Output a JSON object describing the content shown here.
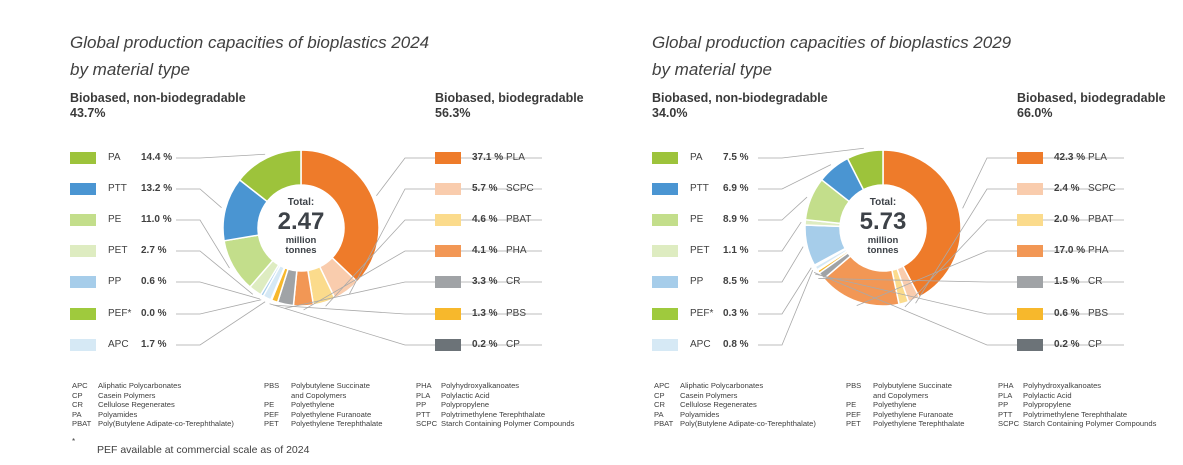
{
  "colors": {
    "PA": "#9dc33b",
    "PTT": "#4a95d2",
    "PE": "#c3de8b",
    "PET": "#deecc1",
    "PP": "#a6cdea",
    "PEF": "#9fca3d",
    "APC": "#d6e9f5",
    "PLA": "#ee7b2a",
    "SCPC": "#f9ccad",
    "PBAT": "#fbdb8c",
    "PHA": "#f29755",
    "CR": "#a0a3a6",
    "PBS": "#f7b82c",
    "CP": "#6c7378",
    "line": "#a9a9a9"
  },
  "charts": [
    {
      "title_line1": "Global production capacities of bioplastics 2024",
      "title_line2": "by material type",
      "left_group": {
        "name": "Biobased, non-biodegradable",
        "pct": "43.7%"
      },
      "right_group": {
        "name": "Biobased, biodegradable",
        "pct": "56.3%"
      },
      "total": {
        "label": "Total:",
        "value": "2.47",
        "unit1": "million",
        "unit2": "tonnes"
      }
    },
    {
      "title_line1": "Global production capacities of bioplastics 2029",
      "title_line2": "by material type",
      "left_group": {
        "name": "Biobased, non-biodegradable",
        "pct": "34.0%"
      },
      "right_group": {
        "name": "Biobased, biodegradable",
        "pct": "66.0%"
      },
      "total": {
        "label": "Total:",
        "value": "5.73",
        "unit1": "million",
        "unit2": "tonnes"
      }
    }
  ],
  "chart_data": [
    {
      "type": "pie",
      "title": "Global production capacities of bioplastics 2024 by material type",
      "unit": "%",
      "left_series": [
        {
          "name": "PA",
          "value": 14.4,
          "label": "14.4 %"
        },
        {
          "name": "PTT",
          "value": 13.2,
          "label": "13.2 %"
        },
        {
          "name": "PE",
          "value": 11.0,
          "label": "11.0 %"
        },
        {
          "name": "PET",
          "value": 2.7,
          "label": "2.7 %"
        },
        {
          "name": "PP",
          "value": 0.6,
          "label": "0.6 %"
        },
        {
          "name": "PEF*",
          "value": 0.0,
          "label": "0.0 %"
        },
        {
          "name": "APC",
          "value": 1.7,
          "label": "1.7 %"
        }
      ],
      "right_series": [
        {
          "name": "PLA",
          "value": 37.1,
          "label": "37.1 %"
        },
        {
          "name": "SCPC",
          "value": 5.7,
          "label": "5.7 %"
        },
        {
          "name": "PBAT",
          "value": 4.6,
          "label": "4.6 %"
        },
        {
          "name": "PHA",
          "value": 4.1,
          "label": "4.1 %"
        },
        {
          "name": "CR",
          "value": 3.3,
          "label": "3.3 %"
        },
        {
          "name": "PBS",
          "value": 1.3,
          "label": "1.3 %"
        },
        {
          "name": "CP",
          "value": 0.2,
          "label": "0.2 %"
        }
      ]
    },
    {
      "type": "pie",
      "title": "Global production capacities of bioplastics 2029 by material type",
      "unit": "%",
      "left_series": [
        {
          "name": "PA",
          "value": 7.5,
          "label": "7.5 %"
        },
        {
          "name": "PTT",
          "value": 6.9,
          "label": "6.9 %"
        },
        {
          "name": "PE",
          "value": 8.9,
          "label": "8.9 %"
        },
        {
          "name": "PET",
          "value": 1.1,
          "label": "1.1 %"
        },
        {
          "name": "PP",
          "value": 8.5,
          "label": "8.5 %"
        },
        {
          "name": "PEF*",
          "value": 0.3,
          "label": "0.3 %"
        },
        {
          "name": "APC",
          "value": 0.8,
          "label": "0.8 %"
        }
      ],
      "right_series": [
        {
          "name": "PLA",
          "value": 42.3,
          "label": "42.3 %"
        },
        {
          "name": "SCPC",
          "value": 2.4,
          "label": "2.4 %"
        },
        {
          "name": "PBAT",
          "value": 2.0,
          "label": "2.0 %"
        },
        {
          "name": "PHA",
          "value": 17.0,
          "label": "17.0 %"
        },
        {
          "name": "CR",
          "value": 1.5,
          "label": "1.5 %"
        },
        {
          "name": "PBS",
          "value": 0.6,
          "label": "0.6 %"
        },
        {
          "name": "CP",
          "value": 0.2,
          "label": "0.2 %"
        }
      ]
    }
  ],
  "glossary": [
    [
      {
        "abbr": "APC",
        "text": "Aliphatic Polycarbonates"
      },
      {
        "abbr": "CP",
        "text": "Casein Polymers"
      },
      {
        "abbr": "CR",
        "text": "Cellulose Regenerates"
      },
      {
        "abbr": "PA",
        "text": "Polyamides"
      },
      {
        "abbr": "PBAT",
        "text": "Poly(Butylene Adipate-co-Terephthalate)"
      }
    ],
    [
      {
        "abbr": "PBS",
        "text": "Polybutylene Succinate"
      },
      {
        "abbr": "",
        "text": "and Copolymers"
      },
      {
        "abbr": "PE",
        "text": "Polyethylene"
      },
      {
        "abbr": "PEF",
        "text": "Polyethylene Furanoate"
      },
      {
        "abbr": "PET",
        "text": "Polyethylene Terephthalate"
      }
    ],
    [
      {
        "abbr": "PHA",
        "text": "Polyhydroxyalkanoates"
      },
      {
        "abbr": "PLA",
        "text": "Polylactic Acid"
      },
      {
        "abbr": "PP",
        "text": "Polypropylene"
      },
      {
        "abbr": "PTT",
        "text": "Polytrimethylene Terephthalate"
      },
      {
        "abbr": "SCPC",
        "text": "Starch Containing Polymer Compounds"
      }
    ]
  ],
  "footnote": {
    "mark": "*",
    "text": "PEF available at commercial scale as of 2024"
  }
}
